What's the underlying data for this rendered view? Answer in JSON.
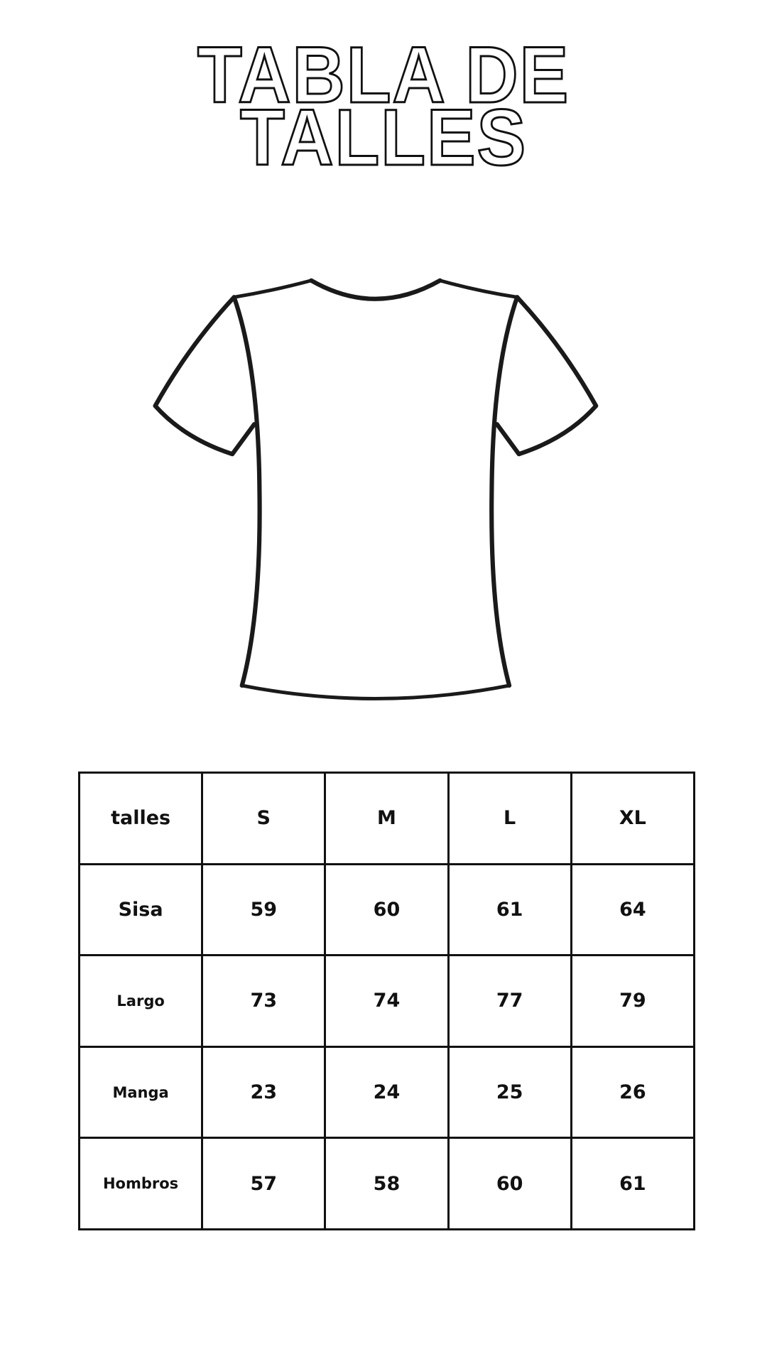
{
  "title": {
    "line1": "TABLA DE",
    "line2": "TALLES"
  },
  "illustration": {
    "icon": "t-shirt-outline-icon"
  },
  "size_table": {
    "header": [
      "talles",
      "S",
      "M",
      "L",
      "XL"
    ],
    "rows": [
      {
        "label": "Sisa",
        "values": [
          "59",
          "60",
          "61",
          "64"
        ]
      },
      {
        "label": "Largo",
        "values": [
          "73",
          "74",
          "77",
          "79"
        ]
      },
      {
        "label": "Manga",
        "values": [
          "23",
          "24",
          "25",
          "26"
        ]
      },
      {
        "label": "Hombros",
        "values": [
          "57",
          "58",
          "60",
          "61"
        ]
      }
    ]
  }
}
